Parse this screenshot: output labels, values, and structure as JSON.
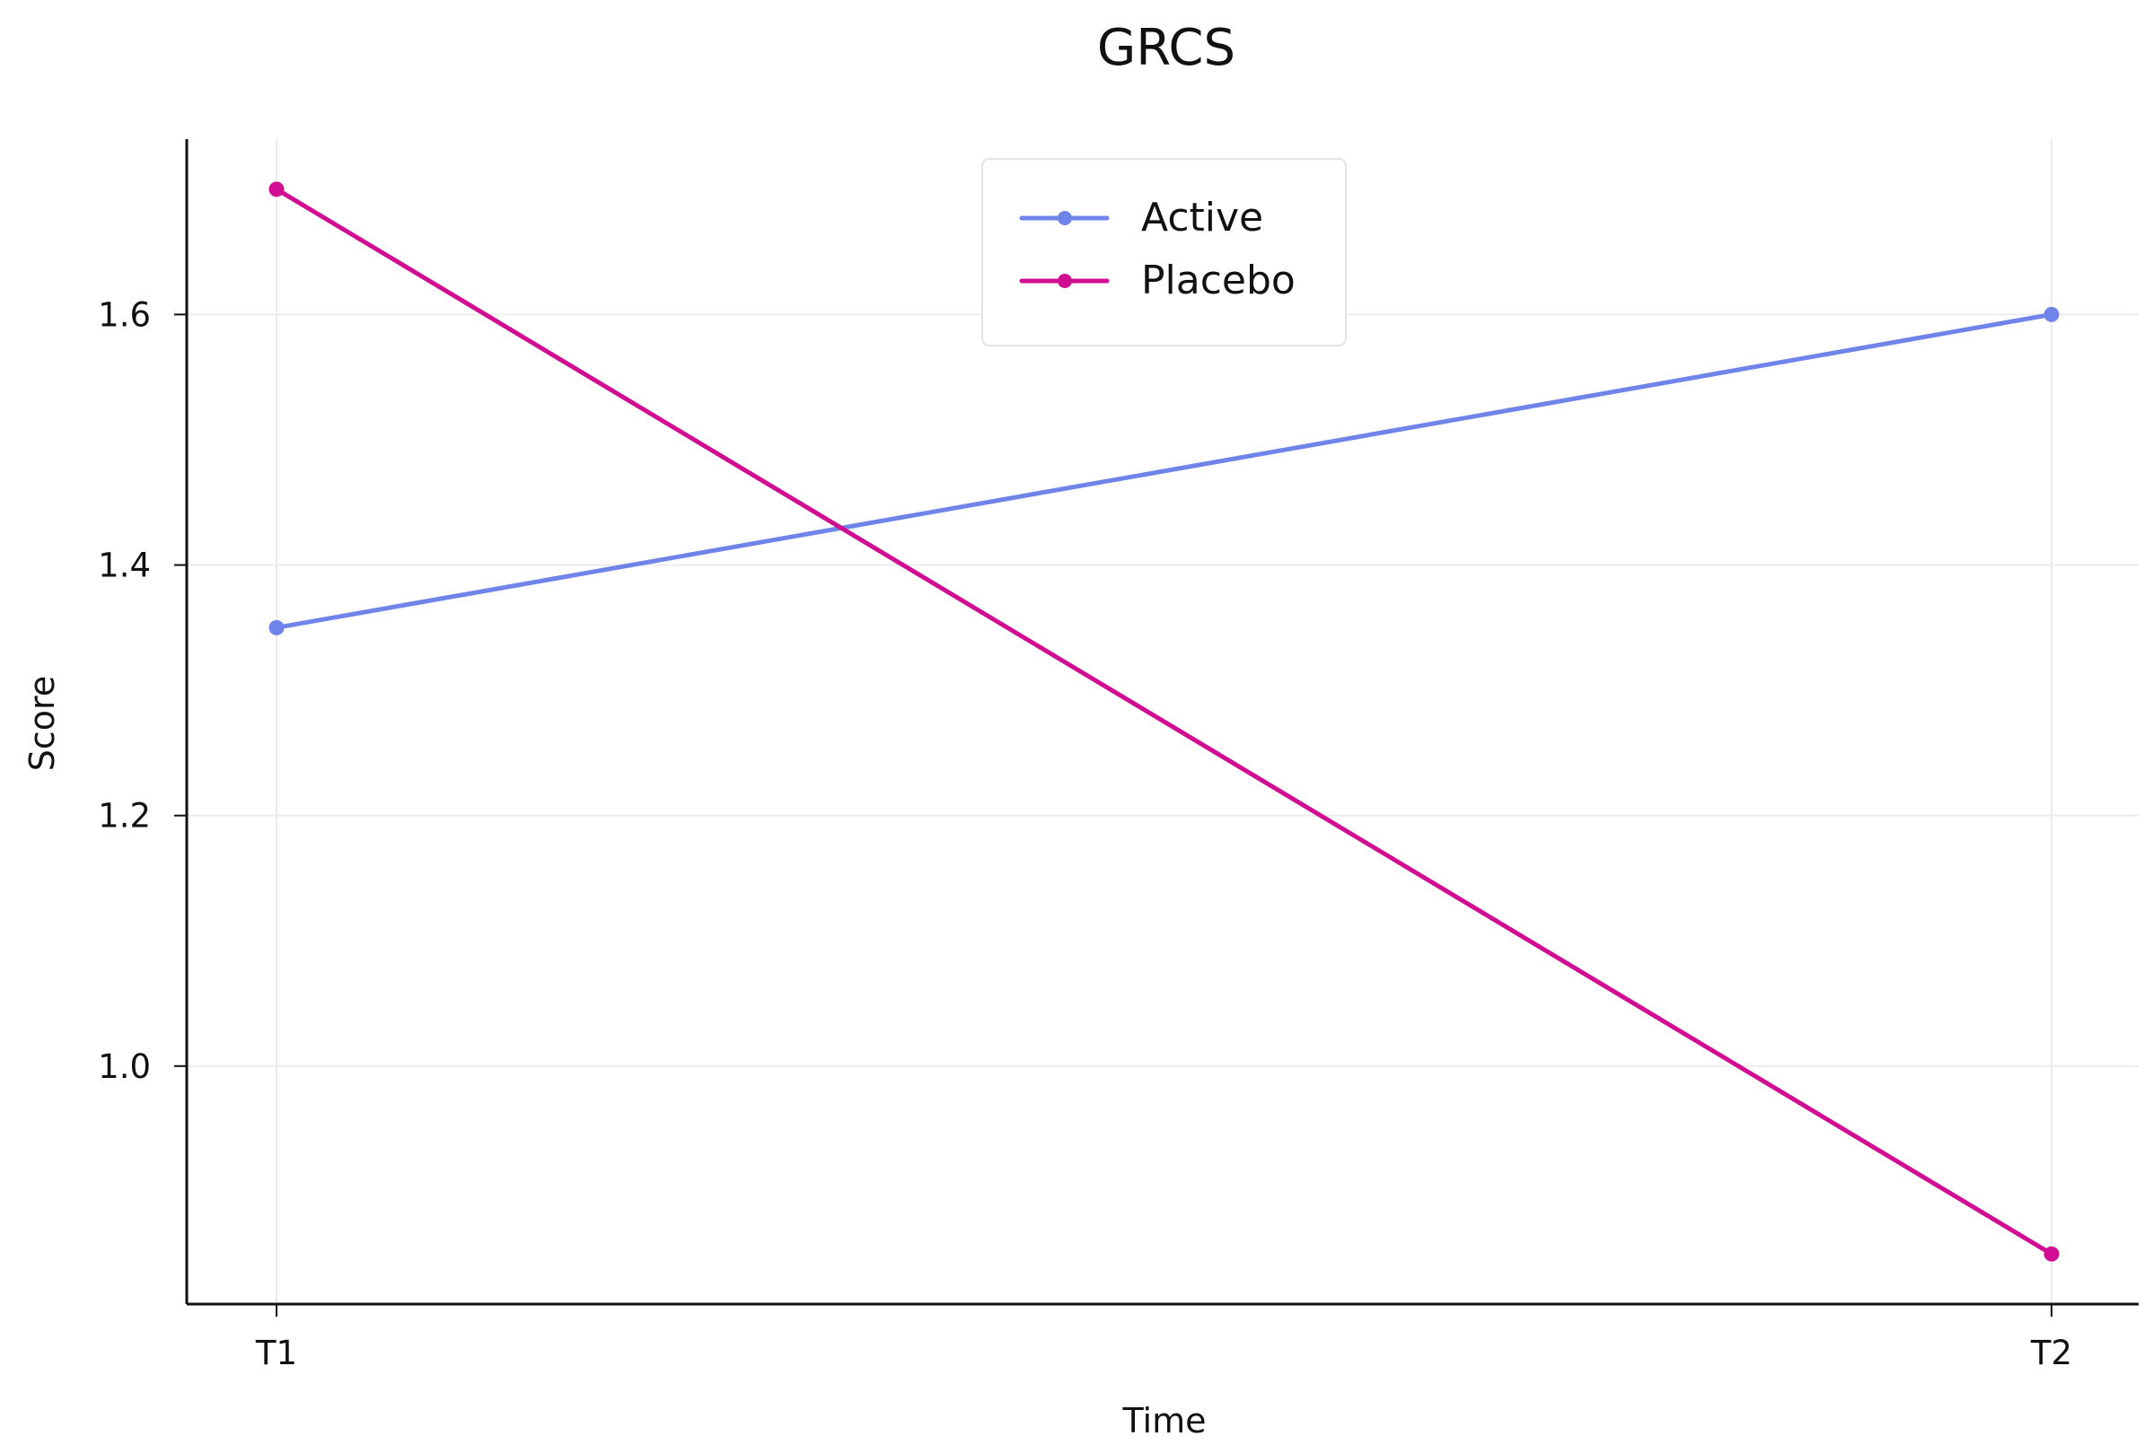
{
  "chart_data": {
    "type": "line",
    "title": "GRCS",
    "xlabel": "Time",
    "ylabel": "Score",
    "categories": [
      "T1",
      "T2"
    ],
    "series": [
      {
        "name": "Active",
        "color": "#6f84e8",
        "values": [
          1.35,
          1.6
        ]
      },
      {
        "name": "Placebo",
        "color": "#d10d92",
        "values": [
          1.7,
          0.85
        ]
      }
    ],
    "y_ticks": [
      1.0,
      1.2,
      1.4,
      1.6
    ],
    "y_tick_labels": [
      "1.0",
      "1.2",
      "1.4",
      "1.6"
    ],
    "ylim": [
      0.81,
      1.74
    ],
    "grid": true,
    "legend_position": "top-center"
  }
}
